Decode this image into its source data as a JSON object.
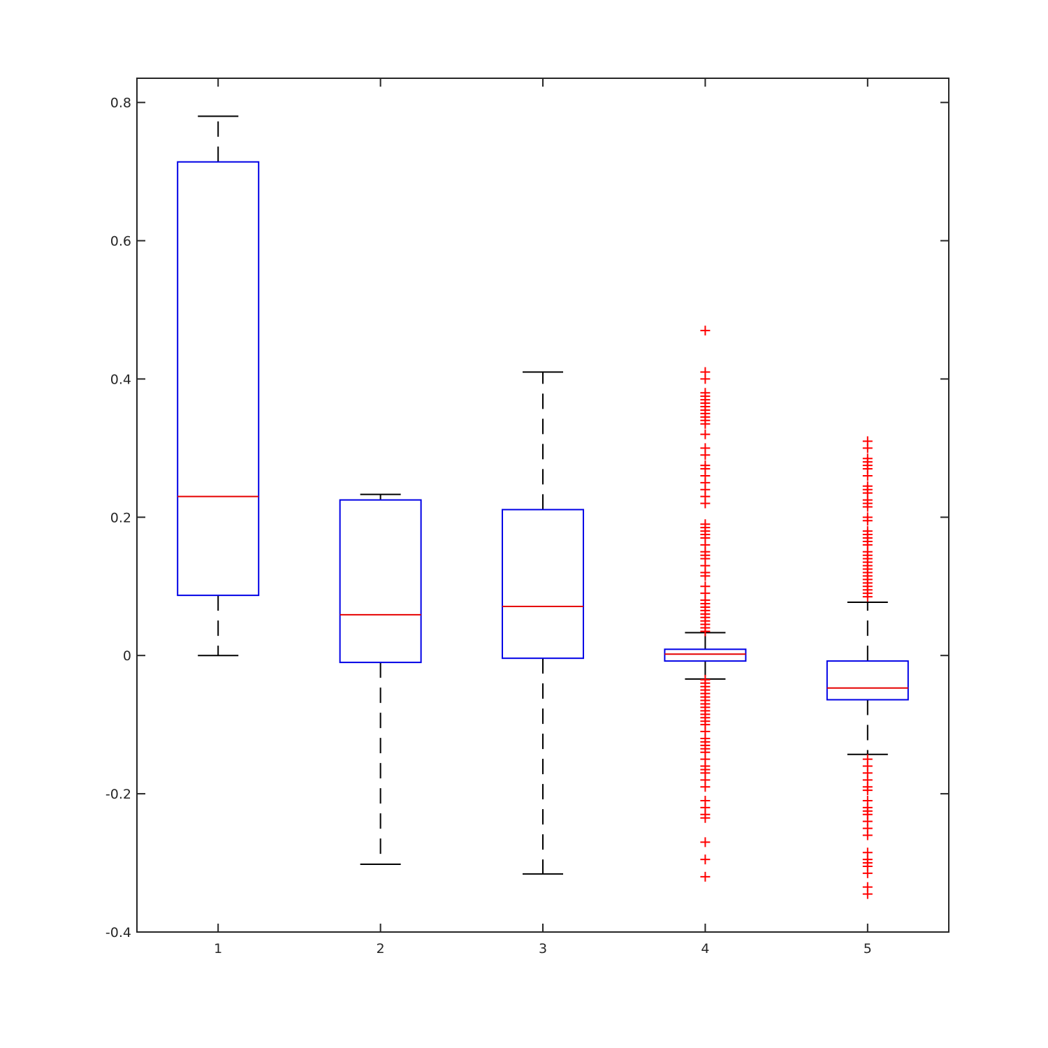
{
  "chart_data": {
    "type": "box",
    "title": "",
    "xlabel": "",
    "ylabel": "",
    "categories": [
      "1",
      "2",
      "3",
      "4",
      "5"
    ],
    "ylim": [
      -0.4,
      0.835
    ],
    "xlim": [
      0.5,
      5.5
    ],
    "yticks": [
      -0.4,
      -0.2,
      0,
      0.2,
      0.4,
      0.6,
      0.8
    ],
    "ytick_labels": [
      "-0.4",
      "-0.2",
      "0",
      "0.2",
      "0.4",
      "0.6",
      "0.8"
    ],
    "grid": false,
    "colors": {
      "box": "#0000e6",
      "median": "#e60000",
      "whisker": "#000000",
      "outlier": "#ff0000",
      "axis": "#262626"
    },
    "boxes": [
      {
        "category": "1",
        "whisker_low": 0.0,
        "q1": 0.087,
        "median": 0.23,
        "q3": 0.714,
        "whisker_high": 0.78,
        "outliers": []
      },
      {
        "category": "2",
        "whisker_low": -0.302,
        "q1": -0.01,
        "median": 0.059,
        "q3": 0.225,
        "whisker_high": 0.233,
        "outliers": []
      },
      {
        "category": "3",
        "whisker_low": -0.316,
        "q1": -0.004,
        "median": 0.071,
        "q3": 0.211,
        "whisker_high": 0.41,
        "outliers": []
      },
      {
        "category": "4",
        "whisker_low": -0.034,
        "q1": -0.008,
        "median": 0.002,
        "q3": 0.009,
        "whisker_high": 0.033,
        "outliers": [
          0.47,
          0.41,
          0.4,
          0.38,
          0.375,
          0.37,
          0.365,
          0.36,
          0.355,
          0.35,
          0.345,
          0.34,
          0.335,
          0.32,
          0.3,
          0.29,
          0.275,
          0.27,
          0.26,
          0.25,
          0.24,
          0.23,
          0.22,
          0.19,
          0.185,
          0.18,
          0.175,
          0.17,
          0.16,
          0.15,
          0.145,
          0.14,
          0.13,
          0.12,
          0.115,
          0.1,
          0.09,
          0.08,
          0.075,
          0.07,
          0.065,
          0.06,
          0.055,
          0.05,
          0.045,
          0.04,
          0.035,
          -0.035,
          -0.04,
          -0.045,
          -0.05,
          -0.055,
          -0.06,
          -0.065,
          -0.07,
          -0.075,
          -0.08,
          -0.085,
          -0.09,
          -0.095,
          -0.1,
          -0.11,
          -0.12,
          -0.125,
          -0.13,
          -0.135,
          -0.14,
          -0.15,
          -0.16,
          -0.165,
          -0.17,
          -0.18,
          -0.19,
          -0.21,
          -0.22,
          -0.23,
          -0.235,
          -0.27,
          -0.295,
          -0.32
        ]
      },
      {
        "category": "5",
        "whisker_low": -0.143,
        "q1": -0.064,
        "median": -0.047,
        "q3": -0.008,
        "whisker_high": 0.077,
        "outliers": [
          0.31,
          0.3,
          0.285,
          0.28,
          0.275,
          0.27,
          0.26,
          0.245,
          0.24,
          0.235,
          0.225,
          0.22,
          0.215,
          0.2,
          0.195,
          0.18,
          0.175,
          0.17,
          0.165,
          0.16,
          0.15,
          0.145,
          0.14,
          0.135,
          0.13,
          0.125,
          0.12,
          0.115,
          0.11,
          0.105,
          0.1,
          0.095,
          0.09,
          0.085,
          -0.15,
          -0.16,
          -0.17,
          -0.18,
          -0.19,
          -0.195,
          -0.21,
          -0.22,
          -0.225,
          -0.23,
          -0.24,
          -0.25,
          -0.26,
          -0.285,
          -0.295,
          -0.3,
          -0.305,
          -0.315,
          -0.335,
          -0.345
        ]
      }
    ]
  }
}
